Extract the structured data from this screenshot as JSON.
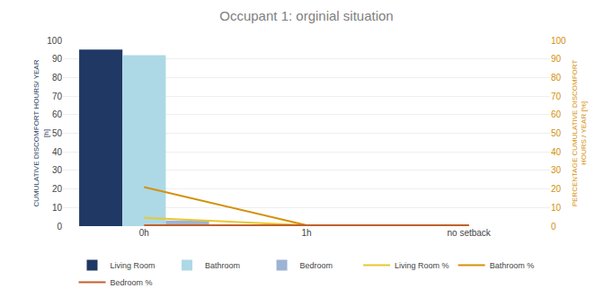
{
  "chart_data": {
    "type": "bar",
    "title": "Occupant 1: orginial situation",
    "categories": [
      "0h",
      "1h",
      "no setback"
    ],
    "series": [
      {
        "name": "Living Room",
        "type": "bar",
        "color": "#1f3864",
        "values": [
          95,
          0,
          0
        ]
      },
      {
        "name": "Bathroom",
        "type": "bar",
        "color": "#add8e6",
        "values": [
          92,
          0,
          0
        ]
      },
      {
        "name": "Bedroom",
        "type": "bar",
        "color": "#9db3d4",
        "values": [
          3,
          0,
          0
        ]
      },
      {
        "name": "Living Room %",
        "type": "line",
        "axis": "y2",
        "color": "#e8c830",
        "values": [
          4.5,
          0.5,
          0.5
        ]
      },
      {
        "name": "Bathroom %",
        "type": "line",
        "axis": "y2",
        "color": "#d4900a",
        "values": [
          21,
          0.5,
          0.5
        ]
      },
      {
        "name": "Bedroom %",
        "type": "line",
        "axis": "y2",
        "color": "#c0612b",
        "values": [
          0.5,
          0.5,
          0.5
        ]
      }
    ],
    "ylabel": "CUMULATIVE DISCOMFORT HOURS/ YEAR\n[h]",
    "y2label": "PERCENTAGE CUMULATIVE DISCOMFORT\nHOURS / YEAR [%]",
    "ylim": [
      0,
      100
    ],
    "yticks": [
      0,
      10,
      20,
      30,
      40,
      50,
      60,
      70,
      80,
      90,
      100
    ],
    "y2lim": [
      0,
      100
    ],
    "y2ticks": [
      0,
      10,
      20,
      30,
      40,
      50,
      60,
      70,
      80,
      90,
      100
    ],
    "grid": true,
    "legend": "bottom"
  }
}
